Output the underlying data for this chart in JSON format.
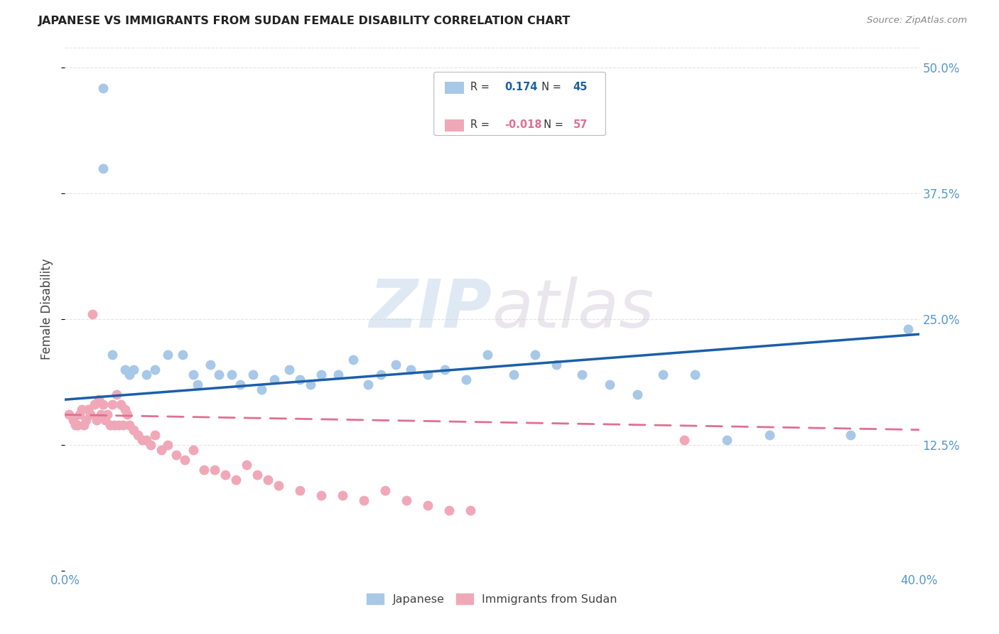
{
  "title": "JAPANESE VS IMMIGRANTS FROM SUDAN FEMALE DISABILITY CORRELATION CHART",
  "source": "Source: ZipAtlas.com",
  "ylabel": "Female Disability",
  "xlim": [
    0.0,
    0.4
  ],
  "ylim": [
    0.0,
    0.52
  ],
  "yticks": [
    0.0,
    0.125,
    0.25,
    0.375,
    0.5
  ],
  "ytick_labels": [
    "",
    "12.5%",
    "25.0%",
    "37.5%",
    "50.0%"
  ],
  "xticks": [
    0.0,
    0.08,
    0.16,
    0.24,
    0.32,
    0.4
  ],
  "xtick_labels": [
    "0.0%",
    "",
    "",
    "",
    "",
    "40.0%"
  ],
  "watermark_zip": "ZIP",
  "watermark_atlas": "atlas",
  "legend_blue_r": "0.174",
  "legend_blue_n": "45",
  "legend_pink_r": "-0.018",
  "legend_pink_n": "57",
  "blue_scatter_color": "#A8C8E8",
  "pink_scatter_color": "#F0A8B8",
  "blue_line_color": "#1A5FA8",
  "pink_line_color": "#E07090",
  "axis_tick_color": "#5599CC",
  "grid_color": "#DDDDDD",
  "background_color": "#FFFFFF",
  "japanese_x": [
    0.018,
    0.018,
    0.022,
    0.028,
    0.03,
    0.032,
    0.038,
    0.042,
    0.048,
    0.055,
    0.06,
    0.062,
    0.068,
    0.072,
    0.078,
    0.082,
    0.088,
    0.092,
    0.098,
    0.105,
    0.11,
    0.115,
    0.12,
    0.128,
    0.135,
    0.142,
    0.148,
    0.155,
    0.162,
    0.17,
    0.178,
    0.188,
    0.198,
    0.21,
    0.22,
    0.23,
    0.242,
    0.255,
    0.268,
    0.28,
    0.295,
    0.31,
    0.33,
    0.368,
    0.395
  ],
  "japanese_y": [
    0.48,
    0.4,
    0.215,
    0.2,
    0.195,
    0.2,
    0.195,
    0.2,
    0.215,
    0.215,
    0.195,
    0.185,
    0.205,
    0.195,
    0.195,
    0.185,
    0.195,
    0.18,
    0.19,
    0.2,
    0.19,
    0.185,
    0.195,
    0.195,
    0.21,
    0.185,
    0.195,
    0.205,
    0.2,
    0.195,
    0.2,
    0.19,
    0.215,
    0.195,
    0.215,
    0.205,
    0.195,
    0.185,
    0.175,
    0.195,
    0.195,
    0.13,
    0.135,
    0.135,
    0.24
  ],
  "sudan_x": [
    0.002,
    0.004,
    0.005,
    0.006,
    0.007,
    0.008,
    0.009,
    0.01,
    0.011,
    0.012,
    0.013,
    0.014,
    0.015,
    0.016,
    0.017,
    0.018,
    0.019,
    0.02,
    0.021,
    0.022,
    0.023,
    0.024,
    0.025,
    0.026,
    0.027,
    0.028,
    0.029,
    0.03,
    0.032,
    0.034,
    0.036,
    0.038,
    0.04,
    0.042,
    0.045,
    0.048,
    0.052,
    0.056,
    0.06,
    0.065,
    0.07,
    0.075,
    0.08,
    0.085,
    0.09,
    0.095,
    0.1,
    0.11,
    0.12,
    0.13,
    0.14,
    0.15,
    0.16,
    0.17,
    0.18,
    0.19,
    0.29
  ],
  "sudan_y": [
    0.155,
    0.15,
    0.145,
    0.145,
    0.155,
    0.16,
    0.145,
    0.15,
    0.16,
    0.155,
    0.255,
    0.165,
    0.15,
    0.17,
    0.155,
    0.165,
    0.15,
    0.155,
    0.145,
    0.165,
    0.145,
    0.175,
    0.145,
    0.165,
    0.145,
    0.16,
    0.155,
    0.145,
    0.14,
    0.135,
    0.13,
    0.13,
    0.125,
    0.135,
    0.12,
    0.125,
    0.115,
    0.11,
    0.12,
    0.1,
    0.1,
    0.095,
    0.09,
    0.105,
    0.095,
    0.09,
    0.085,
    0.08,
    0.075,
    0.075,
    0.07,
    0.08,
    0.07,
    0.065,
    0.06,
    0.06,
    0.13
  ]
}
